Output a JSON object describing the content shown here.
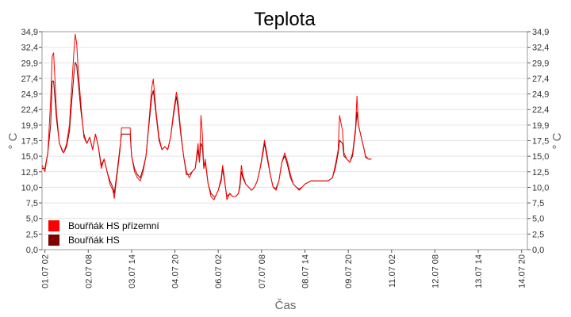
{
  "chart_data": {
    "type": "line",
    "title": "Teplota",
    "xlabel": "Čas",
    "ylabel": "° C",
    "ylim": [
      0,
      34.9
    ],
    "y_ticks": [
      "0,0",
      "2,5",
      "5,0",
      "7,5",
      "10,0",
      "12,5",
      "15,0",
      "17,5",
      "19,9",
      "22,4",
      "24,9",
      "27,4",
      "29,9",
      "32,4",
      "34,9"
    ],
    "x_ticks": [
      "01.07 02",
      "02.07 08",
      "03.07 14",
      "04.07 20",
      "06.07 02",
      "07.07 08",
      "08.07 14",
      "09.07 20",
      "11.07 02",
      "12.07 08",
      "13.07 14",
      "14.07 20"
    ],
    "x_tick_hours": [
      2,
      32,
      62,
      92,
      122,
      152,
      182,
      212,
      242,
      272,
      302,
      332
    ],
    "x_range_hours": [
      0,
      336
    ],
    "grid": true,
    "legend_position": "bottom-left",
    "x_unit": "hours since 01.07 00:00",
    "series": [
      {
        "name": "Bouřňák HS přízemní",
        "color": "#ff0000",
        "points": [
          [
            0,
            13.5
          ],
          [
            2,
            12.5
          ],
          [
            4,
            15.5
          ],
          [
            6,
            24
          ],
          [
            7,
            31
          ],
          [
            8,
            31.5
          ],
          [
            9,
            27
          ],
          [
            10,
            22
          ],
          [
            12,
            17
          ],
          [
            14,
            16
          ],
          [
            15,
            15.5
          ],
          [
            17,
            17
          ],
          [
            19,
            20
          ],
          [
            20,
            24
          ],
          [
            22,
            31.5
          ],
          [
            23,
            34.5
          ],
          [
            24,
            33
          ],
          [
            25,
            29
          ],
          [
            27,
            23
          ],
          [
            29,
            18
          ],
          [
            31,
            17
          ],
          [
            33,
            18
          ],
          [
            35,
            16
          ],
          [
            37,
            18.5
          ],
          [
            39,
            16.5
          ],
          [
            41,
            13
          ],
          [
            43,
            14.5
          ],
          [
            45,
            12.5
          ],
          [
            47,
            10.5
          ],
          [
            49,
            9.5
          ],
          [
            50,
            8.2
          ],
          [
            52,
            12
          ],
          [
            54,
            16
          ],
          [
            55,
            19.5
          ],
          [
            61,
            19.5
          ],
          [
            62,
            15
          ],
          [
            64,
            12.5
          ],
          [
            66,
            11.5
          ],
          [
            68,
            11
          ],
          [
            70,
            12.5
          ],
          [
            72,
            15
          ],
          [
            74,
            20.5
          ],
          [
            76,
            26
          ],
          [
            77,
            27.3
          ],
          [
            79,
            22
          ],
          [
            81,
            18
          ],
          [
            83,
            16
          ],
          [
            85,
            16.5
          ],
          [
            87,
            16
          ],
          [
            89,
            18
          ],
          [
            91,
            22
          ],
          [
            93,
            25.2
          ],
          [
            94,
            24
          ],
          [
            96,
            19
          ],
          [
            98,
            15
          ],
          [
            100,
            12.5
          ],
          [
            102,
            11.5
          ],
          [
            104,
            12.5
          ],
          [
            106,
            13
          ],
          [
            108,
            17
          ],
          [
            109,
            14
          ],
          [
            110,
            21.5
          ],
          [
            111,
            18.5
          ],
          [
            112,
            13
          ],
          [
            113,
            14.5
          ],
          [
            115,
            10.5
          ],
          [
            117,
            8.5
          ],
          [
            119,
            8
          ],
          [
            120,
            8.5
          ],
          [
            122,
            9.5
          ],
          [
            124,
            11.5
          ],
          [
            125,
            13.5
          ],
          [
            126,
            12
          ],
          [
            128,
            8
          ],
          [
            130,
            9
          ],
          [
            132,
            8.5
          ],
          [
            134,
            8.5
          ],
          [
            136,
            9
          ],
          [
            137,
            10.5
          ],
          [
            138,
            13.5
          ],
          [
            139,
            12
          ],
          [
            141,
            10.5
          ],
          [
            143,
            10
          ],
          [
            145,
            9.5
          ],
          [
            147,
            10
          ],
          [
            149,
            11
          ],
          [
            151,
            13
          ],
          [
            153,
            16
          ],
          [
            154,
            17.5
          ],
          [
            156,
            15
          ],
          [
            158,
            12
          ],
          [
            160,
            10
          ],
          [
            162,
            9.5
          ],
          [
            164,
            11
          ],
          [
            166,
            14
          ],
          [
            168,
            15.5
          ],
          [
            170,
            14
          ],
          [
            172,
            12
          ],
          [
            174,
            10.5
          ],
          [
            176,
            10
          ],
          [
            178,
            9.5
          ],
          [
            180,
            10
          ],
          [
            182,
            10.5
          ],
          [
            186,
            11
          ],
          [
            190,
            11
          ],
          [
            194,
            11
          ],
          [
            198,
            11
          ],
          [
            201,
            11.5
          ],
          [
            203,
            13.5
          ],
          [
            205,
            16
          ],
          [
            206,
            21.5
          ],
          [
            208,
            19
          ],
          [
            209,
            15.5
          ],
          [
            211,
            14.5
          ],
          [
            213,
            14
          ],
          [
            215,
            15.5
          ],
          [
            217,
            19.5
          ],
          [
            218,
            24.6
          ],
          [
            219,
            20
          ],
          [
            221,
            18
          ],
          [
            223,
            16
          ],
          [
            224,
            15
          ],
          [
            226,
            14.5
          ],
          [
            228,
            14.5
          ]
        ]
      },
      {
        "name": "Bouřňák HS",
        "color": "#800000",
        "points": [
          [
            0,
            13
          ],
          [
            2,
            13
          ],
          [
            4,
            15.5
          ],
          [
            6,
            20
          ],
          [
            7,
            27
          ],
          [
            8,
            27
          ],
          [
            9,
            24
          ],
          [
            10,
            21
          ],
          [
            12,
            17
          ],
          [
            14,
            15.8
          ],
          [
            15,
            15.5
          ],
          [
            17,
            16.5
          ],
          [
            19,
            19
          ],
          [
            20,
            22
          ],
          [
            22,
            28
          ],
          [
            23,
            30
          ],
          [
            24,
            29.5
          ],
          [
            25,
            27
          ],
          [
            27,
            22
          ],
          [
            29,
            18.5
          ],
          [
            31,
            17
          ],
          [
            33,
            18
          ],
          [
            35,
            16
          ],
          [
            37,
            18.5
          ],
          [
            39,
            16.5
          ],
          [
            41,
            13.5
          ],
          [
            43,
            14.5
          ],
          [
            45,
            12.5
          ],
          [
            47,
            11
          ],
          [
            49,
            10
          ],
          [
            50,
            9
          ],
          [
            52,
            12.5
          ],
          [
            54,
            16.5
          ],
          [
            55,
            18.5
          ],
          [
            61,
            18.5
          ],
          [
            62,
            15
          ],
          [
            64,
            13
          ],
          [
            66,
            12
          ],
          [
            68,
            11.5
          ],
          [
            70,
            13
          ],
          [
            72,
            15
          ],
          [
            74,
            20
          ],
          [
            76,
            24.5
          ],
          [
            77,
            25.5
          ],
          [
            79,
            21.5
          ],
          [
            81,
            17.5
          ],
          [
            83,
            16
          ],
          [
            85,
            16.5
          ],
          [
            87,
            16
          ],
          [
            89,
            18
          ],
          [
            91,
            21.5
          ],
          [
            93,
            24.5
          ],
          [
            94,
            23
          ],
          [
            96,
            18.5
          ],
          [
            98,
            15
          ],
          [
            100,
            12
          ],
          [
            102,
            12
          ],
          [
            104,
            12.5
          ],
          [
            106,
            13
          ],
          [
            108,
            16
          ],
          [
            109,
            14
          ],
          [
            110,
            17
          ],
          [
            111,
            16.5
          ],
          [
            112,
            13
          ],
          [
            113,
            14
          ],
          [
            115,
            10.5
          ],
          [
            117,
            9
          ],
          [
            119,
            8.5
          ],
          [
            120,
            8.5
          ],
          [
            122,
            9.5
          ],
          [
            124,
            11
          ],
          [
            125,
            13
          ],
          [
            126,
            11.5
          ],
          [
            128,
            8.5
          ],
          [
            130,
            9
          ],
          [
            132,
            8.5
          ],
          [
            134,
            8.5
          ],
          [
            136,
            9
          ],
          [
            137,
            10
          ],
          [
            138,
            12.5
          ],
          [
            139,
            11.5
          ],
          [
            141,
            10.5
          ],
          [
            143,
            10
          ],
          [
            145,
            9.5
          ],
          [
            147,
            10
          ],
          [
            149,
            11
          ],
          [
            151,
            13
          ],
          [
            153,
            15.5
          ],
          [
            154,
            17
          ],
          [
            156,
            14.5
          ],
          [
            158,
            12
          ],
          [
            160,
            10
          ],
          [
            162,
            9.8
          ],
          [
            164,
            11
          ],
          [
            166,
            14
          ],
          [
            168,
            15
          ],
          [
            170,
            13.5
          ],
          [
            172,
            11.5
          ],
          [
            174,
            10.5
          ],
          [
            176,
            10
          ],
          [
            178,
            9.7
          ],
          [
            180,
            10
          ],
          [
            182,
            10.5
          ],
          [
            186,
            11
          ],
          [
            190,
            11
          ],
          [
            194,
            11
          ],
          [
            198,
            11
          ],
          [
            201,
            11.5
          ],
          [
            203,
            13
          ],
          [
            205,
            15.5
          ],
          [
            206,
            17.5
          ],
          [
            208,
            17
          ],
          [
            209,
            15
          ],
          [
            211,
            14.5
          ],
          [
            213,
            14
          ],
          [
            215,
            15
          ],
          [
            217,
            19
          ],
          [
            218,
            22
          ],
          [
            219,
            20
          ],
          [
            221,
            18
          ],
          [
            223,
            16
          ],
          [
            224,
            14.8
          ],
          [
            226,
            14.5
          ],
          [
            228,
            14.5
          ]
        ]
      }
    ]
  }
}
